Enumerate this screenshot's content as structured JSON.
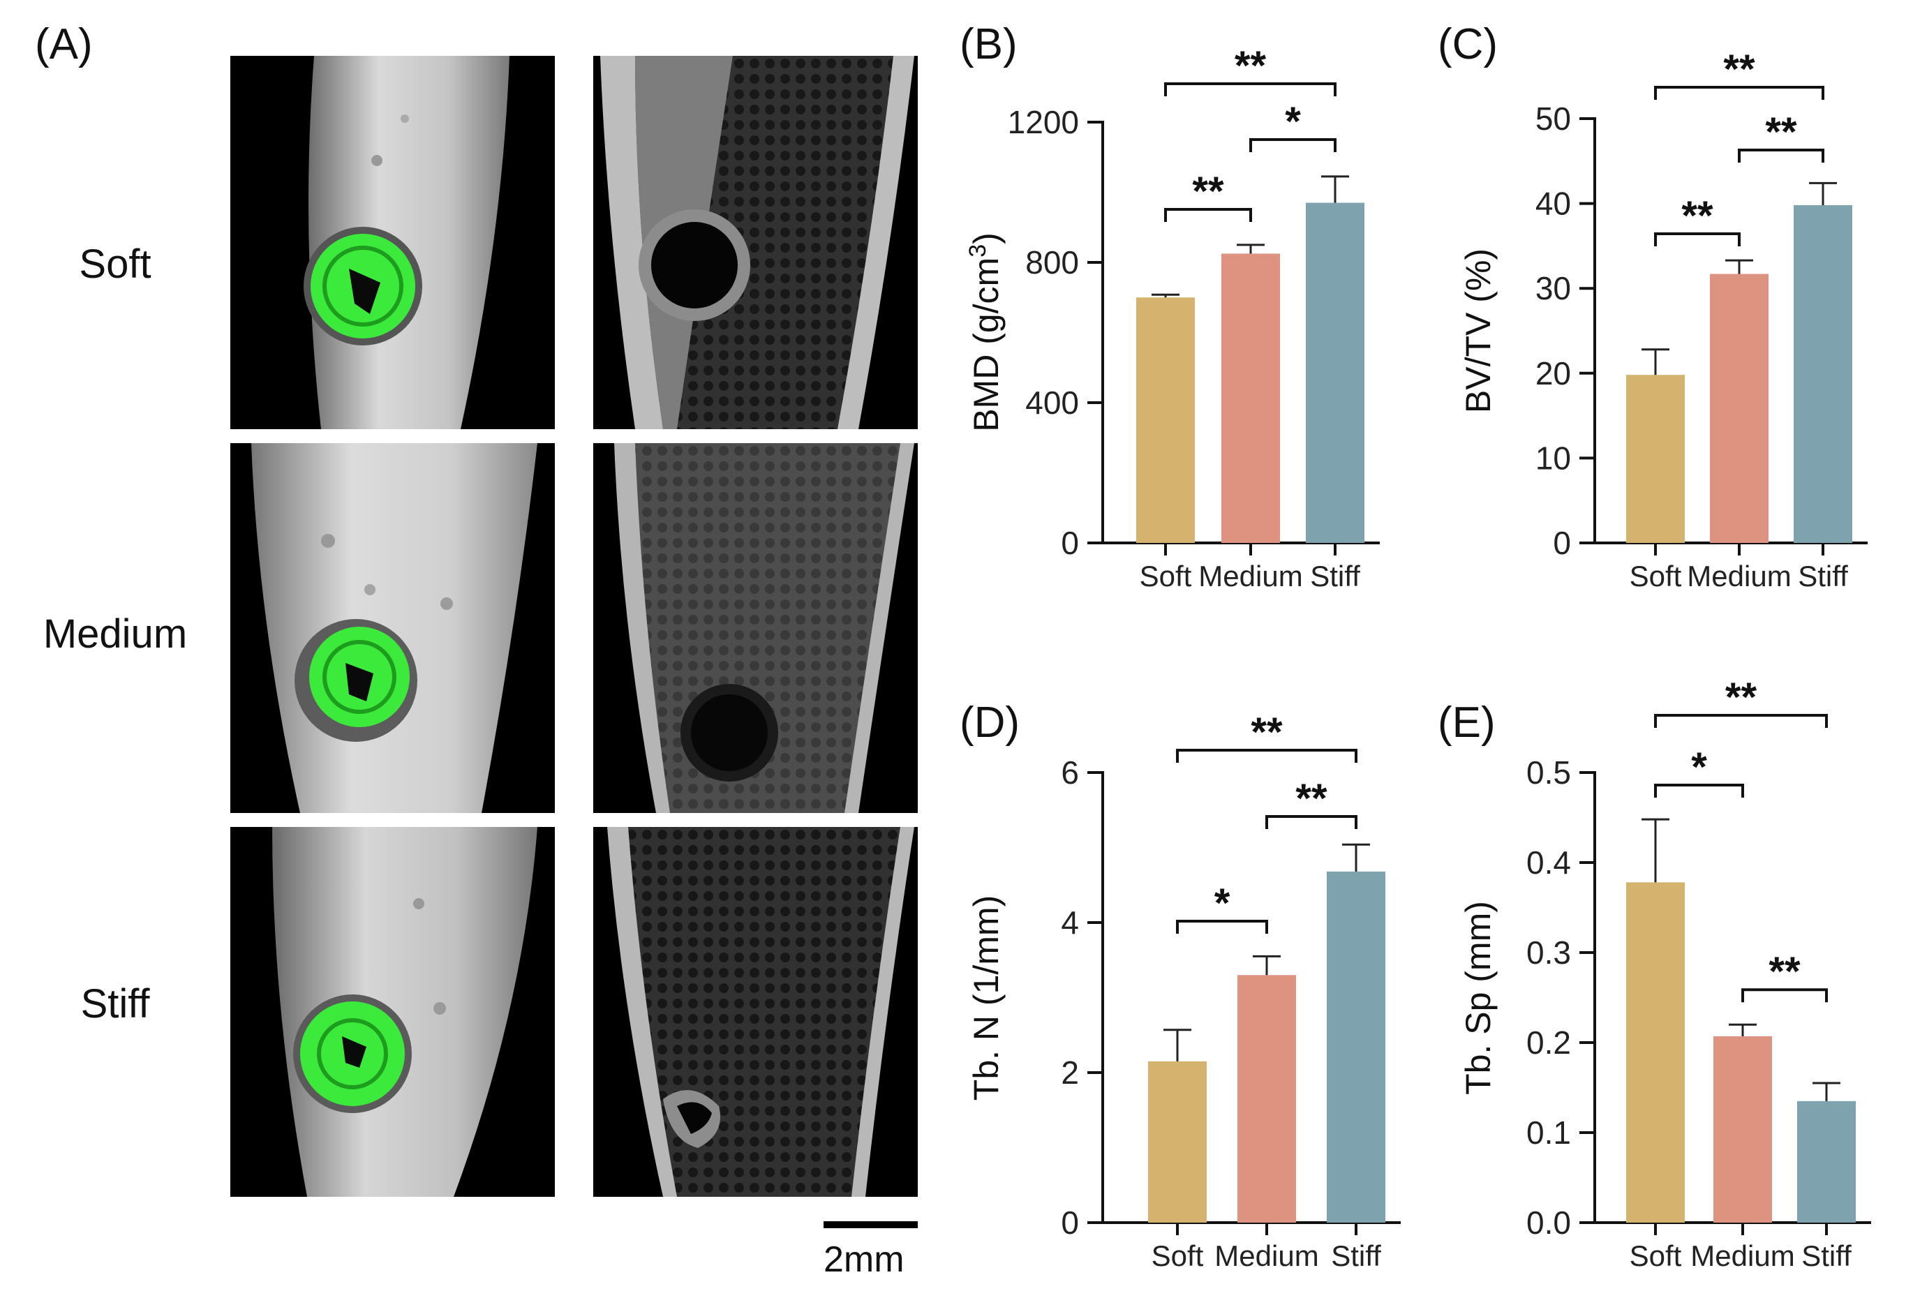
{
  "panel_letters": {
    "A": "(A)",
    "B": "(B)",
    "C": "(C)",
    "D": "(D)",
    "E": "(E)"
  },
  "row_labels": [
    "Soft",
    "Medium",
    "Stiff"
  ],
  "scale_bar_label": "2mm",
  "colors": {
    "Soft": "#d4b36f",
    "Medium": "#de9380",
    "Stiff": "#7ea2ae",
    "implant": "#39e639",
    "axis": "#111111"
  },
  "chart_data": [
    {
      "id": "B",
      "type": "bar",
      "categories": [
        "Soft",
        "Medium",
        "Stiff"
      ],
      "values": [
        700,
        825,
        970
      ],
      "errors": [
        8,
        25,
        75
      ],
      "ylabel": "BMD (g/cm",
      "ylabel_sup": "3",
      "ylabel_tail": ")",
      "ylim": [
        0,
        1200
      ],
      "yticks": [
        0,
        400,
        800,
        1200
      ],
      "ytick_labels": [
        "0",
        "400",
        "800",
        "1200"
      ],
      "significance": [
        {
          "from": 0,
          "to": 1,
          "label": "**",
          "level": 0
        },
        {
          "from": 1,
          "to": 2,
          "label": "*",
          "level": 1
        },
        {
          "from": 0,
          "to": 2,
          "label": "**",
          "level": 2
        }
      ]
    },
    {
      "id": "C",
      "type": "bar",
      "categories": [
        "Soft",
        "Medium",
        "Stiff"
      ],
      "values": [
        19.8,
        31.7,
        39.8
      ],
      "errors": [
        3.0,
        1.6,
        2.6
      ],
      "ylabel": "BV/TV (%)",
      "ylim": [
        0,
        50
      ],
      "yticks": [
        0,
        10,
        20,
        30,
        40,
        50
      ],
      "ytick_labels": [
        "0",
        "10",
        "20",
        "30",
        "40",
        "50"
      ],
      "significance": [
        {
          "from": 0,
          "to": 1,
          "label": "**",
          "level": 0
        },
        {
          "from": 1,
          "to": 2,
          "label": "**",
          "level": 1
        },
        {
          "from": 0,
          "to": 2,
          "label": "**",
          "level": 2
        }
      ]
    },
    {
      "id": "D",
      "type": "bar",
      "categories": [
        "Soft",
        "Medium",
        "Stiff"
      ],
      "values": [
        2.15,
        3.3,
        4.68
      ],
      "errors": [
        0.42,
        0.25,
        0.36
      ],
      "ylabel": "Tb. N (1/mm)",
      "ylim": [
        0,
        6
      ],
      "yticks": [
        0,
        2,
        4,
        6
      ],
      "ytick_labels": [
        "0",
        "2",
        "4",
        "6"
      ],
      "significance": [
        {
          "from": 0,
          "to": 1,
          "label": "*",
          "level": 0
        },
        {
          "from": 1,
          "to": 2,
          "label": "**",
          "level": 1
        },
        {
          "from": 0,
          "to": 2,
          "label": "**",
          "level": 2
        }
      ]
    },
    {
      "id": "E",
      "type": "bar",
      "categories": [
        "Soft",
        "Medium",
        "Stiff"
      ],
      "values": [
        0.378,
        0.207,
        0.135
      ],
      "errors": [
        0.07,
        0.013,
        0.02
      ],
      "ylabel": "Tb. Sp (mm)",
      "ylim": [
        0,
        0.5
      ],
      "yticks": [
        0,
        0.1,
        0.2,
        0.3,
        0.4,
        0.5
      ],
      "ytick_labels": [
        "0.0",
        "0.1",
        "0.2",
        "0.3",
        "0.4",
        "0.5"
      ],
      "significance": [
        {
          "from": 0,
          "to": 1,
          "label": "*",
          "level": 0
        },
        {
          "from": 1,
          "to": 2,
          "label": "**",
          "level": -1
        },
        {
          "from": 0,
          "to": 2,
          "label": "**",
          "level": 1
        }
      ]
    }
  ]
}
